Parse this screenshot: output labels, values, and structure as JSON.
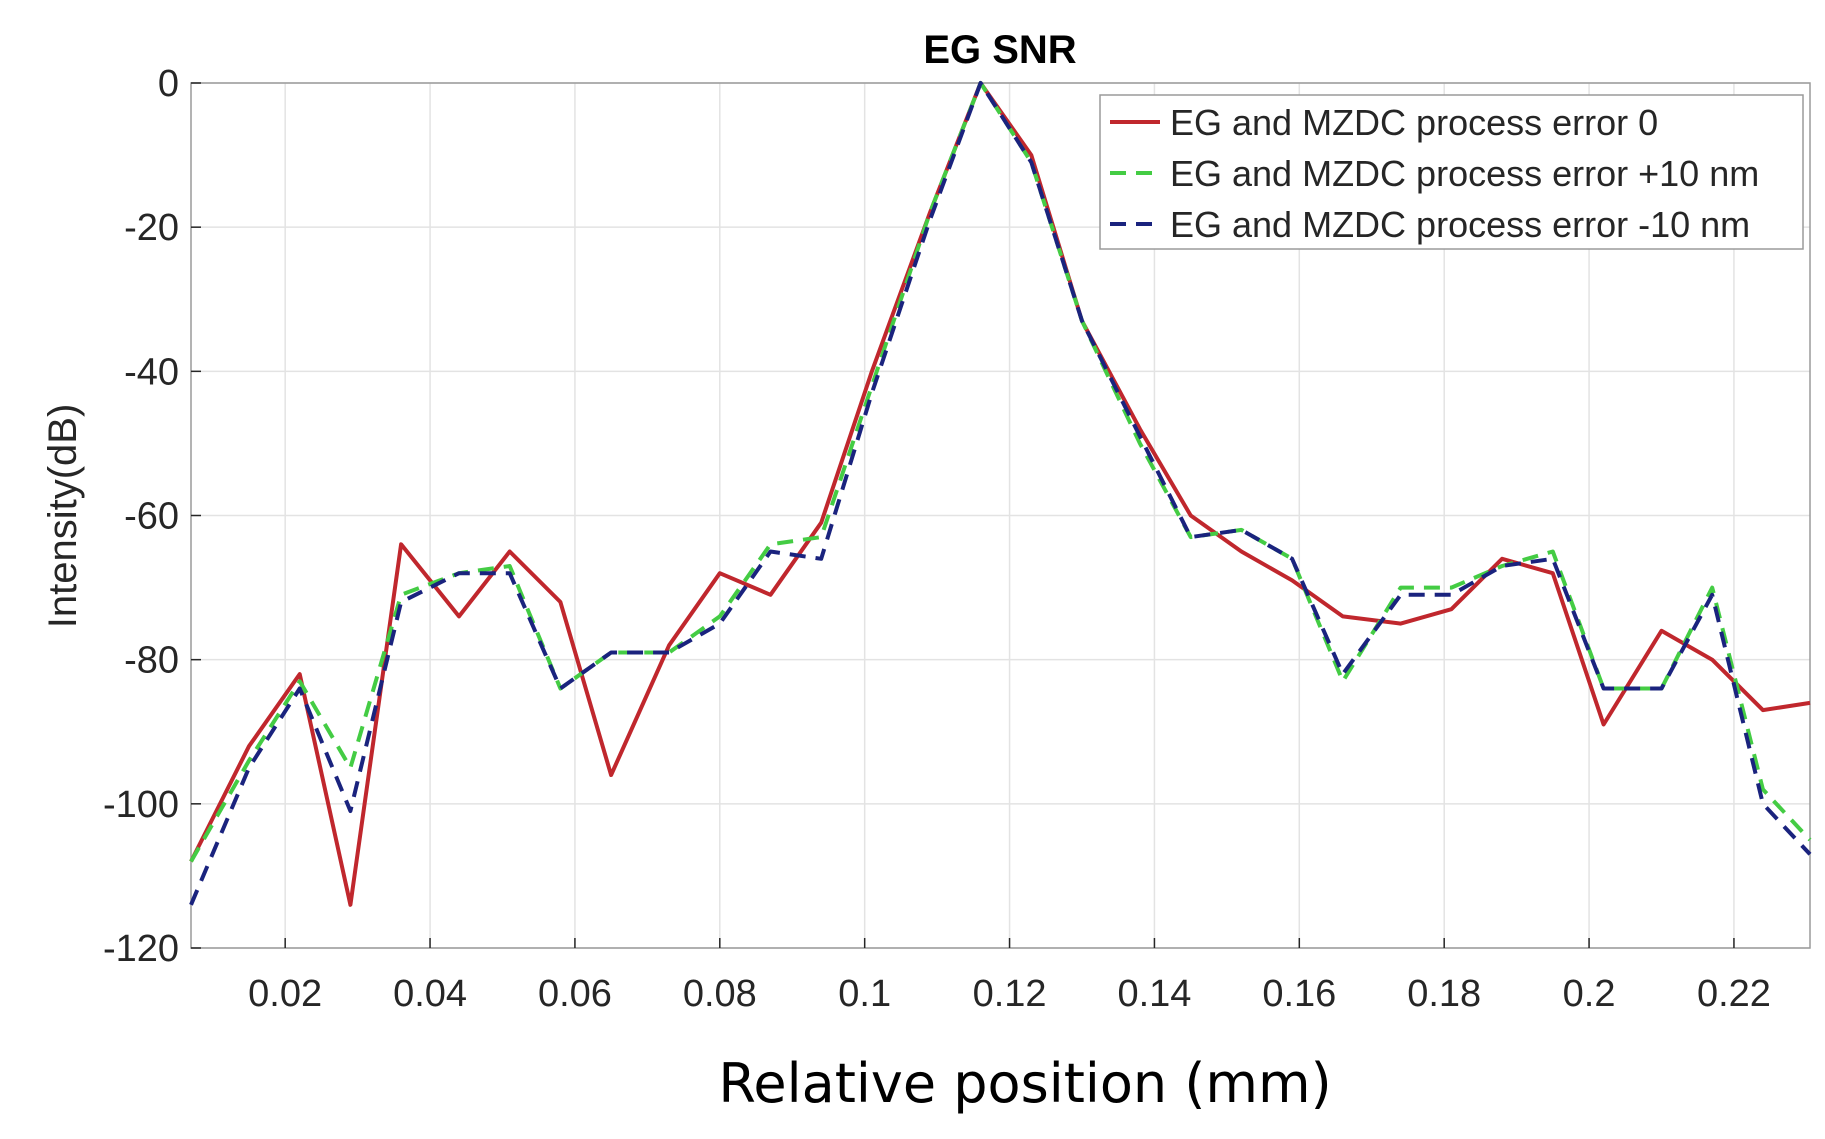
{
  "chart_data": {
    "type": "line",
    "title": "EG SNR",
    "xlabel": "Relative position (mm)",
    "ylabel": "Intensity(dB)",
    "xlim": [
      0.007,
      0.2305
    ],
    "ylim": [
      -120,
      0
    ],
    "grid": true,
    "legend_position": "top-right",
    "x_ticks": [
      {
        "value": 0.02,
        "label": "0.02"
      },
      {
        "value": 0.04,
        "label": "0.04"
      },
      {
        "value": 0.06,
        "label": "0.06"
      },
      {
        "value": 0.08,
        "label": "0.08"
      },
      {
        "value": 0.1,
        "label": "0.1"
      },
      {
        "value": 0.12,
        "label": "0.12"
      },
      {
        "value": 0.14,
        "label": "0.14"
      },
      {
        "value": 0.16,
        "label": "0.16"
      },
      {
        "value": 0.18,
        "label": "0.18"
      },
      {
        "value": 0.2,
        "label": "0.2"
      },
      {
        "value": 0.22,
        "label": "0.22"
      }
    ],
    "y_ticks": [
      {
        "value": 0,
        "label": "0"
      },
      {
        "value": -20,
        "label": "-20"
      },
      {
        "value": -40,
        "label": "-40"
      },
      {
        "value": -60,
        "label": "-60"
      },
      {
        "value": -80,
        "label": "-80"
      },
      {
        "value": -100,
        "label": "-100"
      },
      {
        "value": -120,
        "label": "-120"
      }
    ],
    "x": [
      0.007,
      0.015,
      0.022,
      0.029,
      0.036,
      0.044,
      0.051,
      0.058,
      0.065,
      0.073,
      0.08,
      0.087,
      0.094,
      0.101,
      0.109,
      0.116,
      0.123,
      0.13,
      0.138,
      0.145,
      0.152,
      0.159,
      0.166,
      0.174,
      0.181,
      0.188,
      0.195,
      0.202,
      0.21,
      0.217,
      0.224,
      0.2305
    ],
    "series": [
      {
        "name": "EG and MZDC process error 0",
        "color": "#c0272d",
        "dash": "solid",
        "values": [
          -108,
          -92,
          -82,
          -114,
          -64,
          -74,
          -65,
          -72,
          -96,
          -78,
          -68,
          -71,
          -61,
          -40,
          -18,
          0,
          -10,
          -33,
          -48,
          -60,
          -65,
          -69,
          -74,
          -75,
          -73,
          -66,
          -68,
          -89,
          -76,
          -80,
          -87,
          -86
        ]
      },
      {
        "name": "EG and MZDC process error +10 nm",
        "color": "#44cc44",
        "dash": "dashed",
        "values": [
          -108,
          -94,
          -83,
          -95,
          -71,
          -68,
          -67,
          -84,
          -79,
          -79,
          -74,
          -64,
          -63,
          -42,
          -18,
          0,
          -11,
          -33,
          -50,
          -63,
          -62,
          -66,
          -83,
          -70,
          -70,
          -67,
          -65,
          -84,
          -84,
          -70,
          -98,
          -105
        ]
      },
      {
        "name": "EG and MZDC process error -10 nm",
        "color": "#1a237e",
        "dash": "dashed",
        "values": [
          -114,
          -95,
          -84,
          -101,
          -72,
          -68,
          -68,
          -84,
          -79,
          -79,
          -75,
          -65,
          -66,
          -43,
          -19,
          0,
          -11,
          -33,
          -49,
          -63,
          -62,
          -66,
          -82,
          -71,
          -71,
          -67,
          -66,
          -84,
          -84,
          -71,
          -100,
          -107
        ]
      }
    ]
  }
}
